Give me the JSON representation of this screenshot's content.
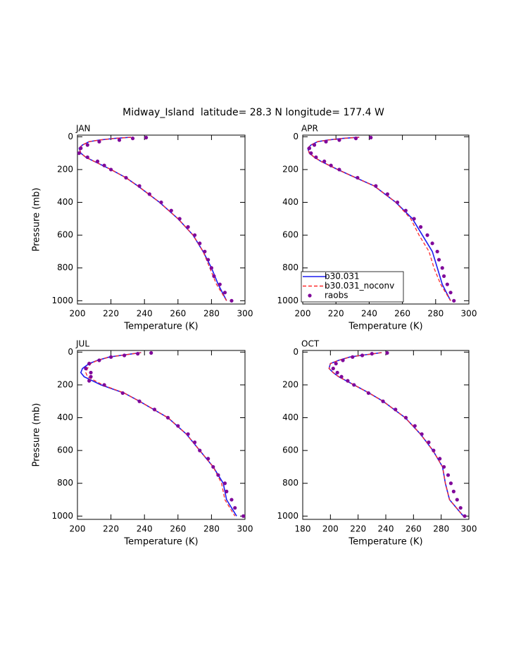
{
  "title": "Midway_Island  latitude= 28.3 N longitude= 177.4 W",
  "chart_data": [
    {
      "type": "line",
      "title": "JAN",
      "xlabel": "Temperature (K)",
      "ylabel": "Pressure (mb)",
      "xlim": [
        200,
        300
      ],
      "xticks": [
        200,
        220,
        240,
        260,
        280,
        300
      ],
      "ylim": [
        1020,
        -10
      ],
      "yticks": [
        0,
        200,
        400,
        600,
        800,
        1000
      ],
      "series": [
        {
          "color": "#1c1cf0",
          "style": "solid",
          "x": [
            232,
            222,
            213,
            207,
            203,
            201,
            202,
            205,
            210,
            220,
            229,
            236,
            249,
            260,
            269,
            275,
            280,
            284,
            289
          ],
          "y": [
            3,
            10,
            20,
            30,
            50,
            70,
            100,
            125,
            150,
            200,
            250,
            300,
            400,
            500,
            600,
            700,
            800,
            900,
            1000
          ]
        },
        {
          "color": "#ff2a2a",
          "style": "dashed",
          "x": [
            232,
            222,
            213,
            207,
            203,
            201,
            202,
            205,
            210,
            220,
            229,
            236,
            249,
            260,
            269,
            275,
            279,
            283,
            289
          ],
          "y": [
            3,
            10,
            20,
            30,
            50,
            70,
            100,
            125,
            150,
            200,
            250,
            300,
            400,
            500,
            600,
            700,
            800,
            900,
            1000
          ]
        },
        {
          "color": "#80089a",
          "style": "dots",
          "x": [
            241,
            233,
            225,
            213,
            206,
            202,
            201,
            206,
            212,
            216,
            220,
            229,
            237,
            243,
            250,
            256,
            261,
            266,
            270,
            273,
            276,
            278,
            280,
            281.5,
            285,
            288,
            292
          ],
          "y": [
            5,
            10,
            20,
            30,
            50,
            70,
            100,
            125,
            150,
            175,
            200,
            250,
            300,
            350,
            400,
            450,
            500,
            550,
            600,
            650,
            700,
            750,
            800,
            850,
            900,
            950,
            1000
          ]
        }
      ]
    },
    {
      "type": "line",
      "title": "APR",
      "xlabel": "Temperature (K)",
      "xlim": [
        200,
        300
      ],
      "xticks": [
        200,
        220,
        240,
        260,
        280,
        300
      ],
      "ylim": [
        1020,
        -10
      ],
      "yticks": [
        0,
        200,
        400,
        600,
        800,
        1000
      ],
      "legend": "lower left",
      "series": [
        {
          "name": "b30.031",
          "color": "#1c1cf0",
          "style": "solid",
          "x": [
            234,
            224,
            215,
            209,
            205,
            203,
            204,
            207,
            211,
            221,
            232,
            243,
            256,
            266,
            272,
            278,
            281,
            284,
            289
          ],
          "y": [
            3,
            10,
            20,
            30,
            50,
            70,
            100,
            125,
            150,
            200,
            250,
            300,
            400,
            500,
            600,
            700,
            800,
            900,
            1000
          ]
        },
        {
          "name": "b30.031_noconv",
          "color": "#ff2a2a",
          "style": "dashed",
          "x": [
            234,
            224,
            215,
            209,
            205,
            203,
            204,
            207,
            211,
            221,
            232,
            243,
            256,
            265,
            270,
            276,
            279,
            283,
            289
          ],
          "y": [
            3,
            10,
            20,
            30,
            50,
            70,
            100,
            125,
            150,
            200,
            250,
            300,
            400,
            500,
            600,
            700,
            800,
            900,
            1000
          ]
        },
        {
          "name": "raobs",
          "color": "#80089a",
          "style": "dots",
          "x": [
            241,
            232,
            222,
            214,
            207,
            204,
            205,
            208,
            213,
            217,
            222,
            233,
            244,
            251,
            257,
            262,
            267,
            271,
            275,
            278,
            281,
            282,
            284,
            285,
            287,
            289,
            291
          ],
          "y": [
            5,
            10,
            20,
            30,
            50,
            70,
            100,
            125,
            150,
            175,
            200,
            250,
            300,
            350,
            400,
            450,
            500,
            550,
            600,
            650,
            700,
            750,
            800,
            850,
            900,
            950,
            1000
          ]
        }
      ]
    },
    {
      "type": "line",
      "title": "JUL",
      "xlabel": "Temperature (K)",
      "ylabel": "Pressure (mb)",
      "xlim": [
        200,
        300
      ],
      "xticks": [
        200,
        220,
        240,
        260,
        280,
        300
      ],
      "ylim": [
        1020,
        -10
      ],
      "yticks": [
        0,
        200,
        400,
        600,
        800,
        1000
      ],
      "series": [
        {
          "color": "#1c1cf0",
          "style": "solid",
          "x": [
            238,
            233,
            226,
            219,
            212,
            207,
            203,
            202,
            204,
            214,
            228,
            237,
            254,
            265,
            273,
            281,
            287,
            289,
            295
          ],
          "y": [
            3,
            10,
            20,
            30,
            50,
            70,
            100,
            125,
            150,
            200,
            250,
            300,
            400,
            500,
            600,
            700,
            800,
            900,
            1000
          ]
        },
        {
          "color": "#ff2a2a",
          "style": "dashed",
          "x": [
            238,
            233,
            226,
            219,
            212,
            208,
            206,
            205,
            206,
            215,
            228,
            237,
            254,
            265,
            273,
            281,
            286,
            288,
            294
          ],
          "y": [
            3,
            10,
            20,
            30,
            50,
            70,
            100,
            125,
            150,
            200,
            250,
            300,
            400,
            500,
            600,
            700,
            800,
            900,
            1000
          ]
        },
        {
          "color": "#80089a",
          "style": "dots",
          "x": [
            244,
            236,
            228,
            220,
            213,
            207,
            205,
            208,
            208,
            207,
            216,
            227,
            237,
            246,
            254,
            260,
            266,
            270,
            273,
            278,
            281,
            284,
            288,
            289,
            292,
            294,
            299
          ],
          "y": [
            5,
            10,
            20,
            30,
            50,
            70,
            100,
            125,
            150,
            175,
            200,
            250,
            300,
            350,
            400,
            450,
            500,
            550,
            600,
            650,
            700,
            750,
            800,
            850,
            900,
            950,
            1000
          ]
        }
      ]
    },
    {
      "type": "line",
      "title": "OCT",
      "xlabel": "Temperature (K)",
      "xlim": [
        180,
        300
      ],
      "xticks": [
        180,
        200,
        220,
        240,
        260,
        280,
        300
      ],
      "ylim": [
        1020,
        -10
      ],
      "yticks": [
        0,
        200,
        400,
        600,
        800,
        1000
      ],
      "series": [
        {
          "color": "#1c1cf0",
          "style": "solid",
          "x": [
            237,
            231,
            222,
            214,
            206,
            200,
            199,
            202,
            206,
            217,
            228,
            238,
            254,
            265,
            274,
            281,
            283,
            286,
            296
          ],
          "y": [
            3,
            10,
            20,
            30,
            50,
            70,
            100,
            125,
            150,
            200,
            250,
            300,
            400,
            500,
            600,
            700,
            800,
            900,
            1000
          ]
        },
        {
          "color": "#ff2a2a",
          "style": "dashed",
          "x": [
            237,
            231,
            222,
            214,
            206,
            200,
            199,
            202,
            206,
            217,
            228,
            238,
            254,
            265,
            274,
            281,
            283,
            286,
            296
          ],
          "y": [
            3,
            10,
            20,
            30,
            50,
            70,
            100,
            125,
            150,
            200,
            250,
            300,
            400,
            500,
            600,
            700,
            800,
            900,
            1000
          ]
        },
        {
          "color": "#80089a",
          "style": "dots",
          "x": [
            241,
            230,
            223,
            216,
            209,
            204,
            202,
            205,
            208,
            212.5,
            217,
            227.5,
            238,
            247,
            254.5,
            261,
            266,
            271,
            274.5,
            279,
            282,
            285,
            287,
            289,
            291.5,
            294,
            297
          ],
          "y": [
            5,
            10,
            20,
            30,
            50,
            70,
            100,
            125,
            150,
            175,
            200,
            250,
            300,
            350,
            400,
            450,
            500,
            550,
            600,
            650,
            700,
            750,
            800,
            850,
            900,
            950,
            1000
          ]
        }
      ]
    }
  ]
}
